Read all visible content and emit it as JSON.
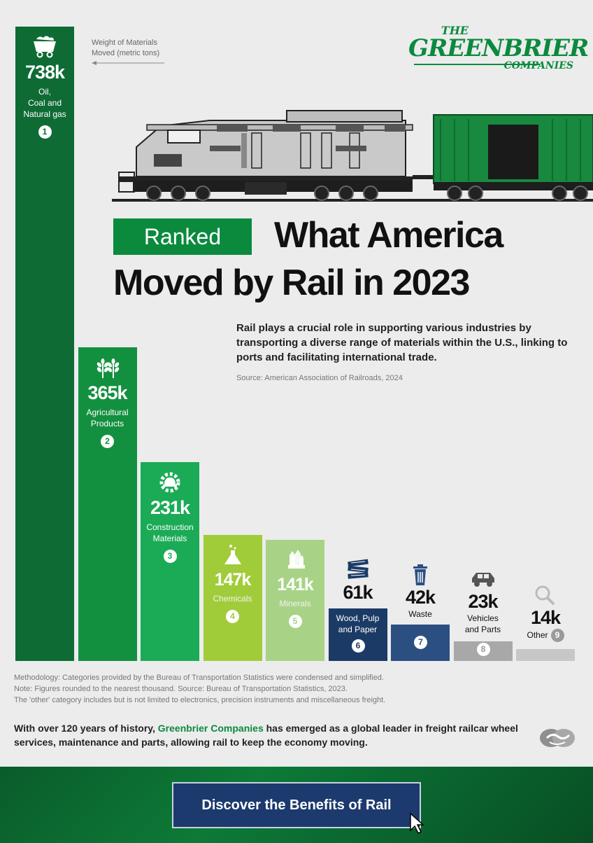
{
  "legend_note": {
    "line1": "Weight of Materials",
    "line2": "Moved (metric tons)"
  },
  "logo": {
    "the": "THE",
    "main": "GREENBRIER",
    "companies": "COMPANIES"
  },
  "title": {
    "ranked": "Ranked",
    "line1": "What America",
    "line2": "Moved by Rail in 2023"
  },
  "subtitle": "Rail plays a crucial role in supporting various industries by transporting a diverse range of materials within the U.S., linking to ports and facilitating international trade.",
  "source": "Source: American Association of Railroads, 2024",
  "chart_data": {
    "type": "bar",
    "categories": [
      "Oil, Coal and Natural gas",
      "Agricultural Products",
      "Construction Materials",
      "Chemicals",
      "Minerals",
      "Wood, Pulp and Paper",
      "Waste",
      "Vehicles and Parts",
      "Other"
    ],
    "values": [
      738,
      365,
      231,
      147,
      141,
      61,
      42,
      23,
      14
    ],
    "value_labels": [
      "738k",
      "365k",
      "231k",
      "147k",
      "141k",
      "61k",
      "42k",
      "23k",
      "14k"
    ],
    "ranks": [
      "1",
      "2",
      "3",
      "4",
      "5",
      "6",
      "7",
      "8",
      "9"
    ],
    "label_lines": [
      [
        "Oil,",
        "Coal and",
        "Natural gas"
      ],
      [
        "Agricultural",
        "Products"
      ],
      [
        "Construction",
        "Materials"
      ],
      [
        "Chemicals"
      ],
      [
        "Minerals"
      ],
      [
        "Wood, Pulp",
        "and Paper"
      ],
      [
        "Waste"
      ],
      [
        "Vehicles",
        "and Parts"
      ],
      [
        "Other"
      ]
    ],
    "icons": [
      "coal-cart-icon",
      "wheat-icon",
      "gear-hardhat-icon",
      "flask-icon",
      "crystal-icon",
      "lumber-icon",
      "trash-can-icon",
      "car-icon",
      "magnifier-icon"
    ],
    "colors": [
      "#0e6b34",
      "#13903f",
      "#1bab56",
      "#a1cc3a",
      "#a8d386",
      "#1b3b66",
      "#2c4f82",
      "#a8a8a8",
      "#c7c7c7"
    ],
    "ylabel": "Weight of Materials Moved (metric tons)"
  },
  "methodology": [
    "Methodology: Categories provided by the Bureau of Transportation Statistics were condensed and simplified.",
    "Note: Figures rounded to the nearest thousand. Source: Bureau of Transportation Statistics, 2023.",
    "The 'other' category includes but is not limited to electronics, precision instruments and miscellaneous freight."
  ],
  "closing": {
    "pre": "With over 120 years of history, ",
    "brand": "Greenbrier Companies",
    "post": " has emerged as a global leader in freight railcar wheel services, maintenance and parts, allowing rail to keep the economy moving."
  },
  "cta": {
    "label": "Discover the Benefits of Rail"
  }
}
